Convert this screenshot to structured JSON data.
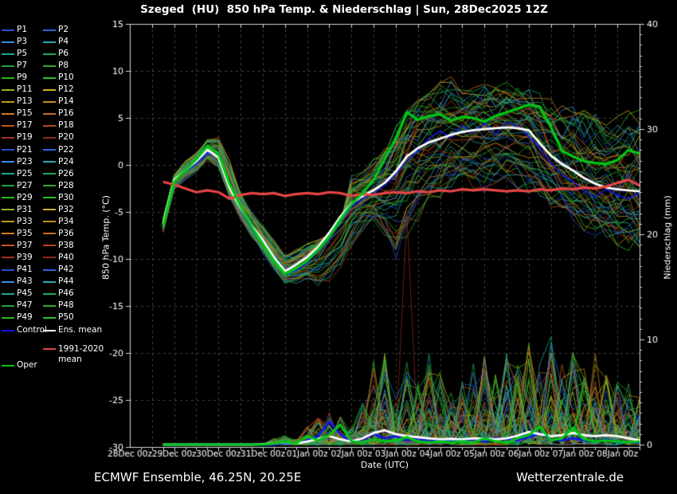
{
  "header": {
    "title": "Szeged  (HU)  850 hPa Temp. & Niederschlag | Sun, 28Dec2025 12Z"
  },
  "footer": {
    "left": "ECMWF Ensemble, 46.25N, 20.25E",
    "right": "Wetterzentrale.de"
  },
  "legend": {
    "members": [
      "P1",
      "P2",
      "P3",
      "P4",
      "P5",
      "P6",
      "P7",
      "P8",
      "P9",
      "P10",
      "P11",
      "P12",
      "P13",
      "P14",
      "P15",
      "P16",
      "P17",
      "P18",
      "P19",
      "P20",
      "P21",
      "P22",
      "P23",
      "P24",
      "P25",
      "P26",
      "P27",
      "P28",
      "P29",
      "P30",
      "P31",
      "P32",
      "P33",
      "P34",
      "P35",
      "P36",
      "P37",
      "P38",
      "P39",
      "P40",
      "P41",
      "P42",
      "P43",
      "P44",
      "P45",
      "P46",
      "P47",
      "P48",
      "P49",
      "P50"
    ],
    "palette20": [
      "#2050c8",
      "#2866d8",
      "#3c8ce0",
      "#28aab4",
      "#1ea88c",
      "#1ea85e",
      "#28a03c",
      "#30aa28",
      "#2eb81e",
      "#28c028",
      "#96b41e",
      "#c8b81e",
      "#b89a14",
      "#c88c1c",
      "#d27e1e",
      "#c86e1c",
      "#be5a1a",
      "#b44a1e",
      "#a03220",
      "#8c2a1c"
    ],
    "extras": [
      {
        "id": "control",
        "label": "Control",
        "color": "#1414e6"
      },
      {
        "id": "ens-mean",
        "label": "Ens. mean",
        "color": "#ffffff"
      },
      {
        "id": "climate-mean",
        "label": "1991-2020 mean",
        "color": "#e64545"
      },
      {
        "id": "oper",
        "label": "Oper",
        "color": "#00c814"
      }
    ]
  },
  "chart_data": {
    "type": "line",
    "title": "Szeged  (HU)  850 hPa Temp. & Niederschlag | Sun, 28Dec2025 12Z",
    "x_axis": {
      "label": "Date (UTC)",
      "span_days": 11.5,
      "grid_hours": 12,
      "minor_tick_hours": 6,
      "tick_labels": [
        "28Dec 00z",
        "29Dec 00z",
        "30Dec 00z",
        "31Dec 00z",
        "01Jan 00z",
        "02Jan 00z",
        "03Jan 00z",
        "04Jan 00z",
        "05Jan 00z",
        "06Jan 00z",
        "07Jan 00z",
        "08Jan 00z"
      ]
    },
    "y_left": {
      "label": "850 hPa Temp. (°C)",
      "min": -30,
      "max": 15,
      "ticks": [
        15,
        10,
        5,
        0,
        -5,
        -10,
        -15,
        -20,
        -25,
        -30
      ]
    },
    "y_right": {
      "label": "Niederschlag (mm)",
      "min": 0,
      "max": 40,
      "ticks": [
        40,
        30,
        20,
        10,
        0
      ]
    },
    "colors": {
      "background": "#000000",
      "frame": "#d8d8d8",
      "grid": "#45453e",
      "text": "#ffffff"
    },
    "t_days": [
      0.75,
      1,
      1.25,
      1.5,
      1.75,
      2,
      2.25,
      2.5,
      2.75,
      3,
      3.25,
      3.5,
      3.75,
      4,
      4.25,
      4.5,
      4.75,
      5,
      5.25,
      5.5,
      5.75,
      6,
      6.25,
      6.5,
      6.75,
      7,
      7.25,
      7.5,
      7.75,
      8,
      8.25,
      8.5,
      8.75,
      9,
      9.25,
      9.5,
      9.75,
      10,
      10.25,
      10.5,
      10.75,
      11,
      11.25,
      11.5
    ],
    "series": {
      "ens_mean_temp": {
        "name": "Ens. mean",
        "color": "#ffffff",
        "width": 2.8,
        "axis": "temp",
        "values": [
          -6.3,
          -1.6,
          -0.6,
          0.4,
          1.6,
          0.8,
          -2.4,
          -4.6,
          -6.5,
          -8.0,
          -9.8,
          -11.3,
          -10.6,
          -9.8,
          -8.7,
          -7.2,
          -5.5,
          -4.1,
          -3.3,
          -2.7,
          -1.9,
          -0.7,
          0.9,
          1.8,
          2.4,
          2.8,
          3.2,
          3.5,
          3.7,
          3.8,
          3.9,
          4.0,
          3.9,
          3.7,
          2.3,
          1.0,
          0.1,
          -0.6,
          -1.4,
          -2.0,
          -2.4,
          -2.6,
          -2.7,
          -2.8
        ]
      },
      "oper_temp": {
        "name": "Oper",
        "color": "#00c814",
        "width": 3.2,
        "axis": "temp",
        "values": [
          -6.6,
          -1.8,
          -0.6,
          0.6,
          2.0,
          1.2,
          -2.0,
          -4.4,
          -6.6,
          -8.4,
          -10.2,
          -11.6,
          -11.0,
          -10.2,
          -9.0,
          -7.6,
          -5.8,
          -4.2,
          -3.0,
          -1.6,
          0.6,
          2.8,
          5.6,
          4.8,
          5.2,
          5.4,
          4.7,
          5.1,
          5.0,
          4.6,
          5.2,
          5.6,
          6.0,
          6.4,
          6.2,
          4.0,
          1.5,
          0.9,
          0.4,
          0.2,
          0.1,
          0.5,
          1.6,
          1.2
        ]
      },
      "control_temp": {
        "name": "Control",
        "color": "#1414e6",
        "width": 1.6,
        "axis": "temp",
        "values": [
          -6.4,
          -1.7,
          -0.7,
          0.1,
          1.3,
          1.0,
          -2.2,
          -4.8,
          -6.8,
          -8.3,
          -10.1,
          -11.6,
          -11.2,
          -10.4,
          -9.2,
          -7.8,
          -6.0,
          -4.4,
          -3.6,
          -3.0,
          -2.2,
          -1.0,
          0.4,
          1.5,
          2.8,
          3.6,
          2.9,
          4.2,
          3.4,
          4.4,
          3.2,
          4.6,
          4.1,
          3.0,
          1.8,
          0.2,
          -1.0,
          -1.8,
          -2.8,
          -3.4,
          -2.6,
          -3.2,
          -3.6,
          -3.0
        ]
      },
      "climate_mean_temp": {
        "name": "1991-2020 mean",
        "color": "#e64545",
        "width": 3.2,
        "axis": "temp",
        "values": [
          -1.8,
          -2.1,
          -2.5,
          -2.9,
          -2.7,
          -2.9,
          -3.6,
          -3.2,
          -3.0,
          -3.1,
          -3.0,
          -3.3,
          -3.1,
          -3.0,
          -3.1,
          -2.9,
          -3.0,
          -3.3,
          -3.1,
          -3.2,
          -3.0,
          -2.9,
          -3.0,
          -2.8,
          -2.9,
          -2.7,
          -2.8,
          -2.6,
          -2.7,
          -2.6,
          -2.7,
          -2.8,
          -2.7,
          -2.8,
          -2.6,
          -2.7,
          -2.5,
          -2.6,
          -2.4,
          -2.5,
          -2.3,
          -1.9,
          -1.6,
          -2.2
        ]
      },
      "ens_mean_precip": {
        "name": "Ens. mean",
        "color": "#ffffff",
        "width": 2.8,
        "axis": "precip",
        "values": [
          0,
          0,
          0,
          0,
          0,
          0,
          0,
          0,
          0,
          0.05,
          0.1,
          0.25,
          0.1,
          0.3,
          0.55,
          0.8,
          0.5,
          0.3,
          0.6,
          1.1,
          1.35,
          1.0,
          0.8,
          0.7,
          0.6,
          0.5,
          0.55,
          0.5,
          0.6,
          0.55,
          0.5,
          0.6,
          0.85,
          1.2,
          1.0,
          0.8,
          0.9,
          1.1,
          0.9,
          0.8,
          0.9,
          0.8,
          0.6,
          0.4
        ]
      },
      "oper_precip": {
        "name": "Oper",
        "color": "#00c814",
        "width": 3.0,
        "axis": "precip",
        "values": [
          0,
          0,
          0,
          0,
          0,
          0,
          0,
          0,
          0,
          0,
          0.1,
          0.3,
          0.1,
          0.8,
          0.4,
          0.9,
          1.9,
          0.3,
          0.2,
          0.5,
          0.3,
          0.4,
          0.7,
          0.3,
          0.2,
          0.3,
          0.2,
          0.3,
          0.2,
          0.6,
          0.3,
          0.2,
          0.6,
          0.9,
          1.7,
          0.4,
          0.6,
          1.6,
          0.5,
          0.3,
          0.4,
          0.3,
          0.2,
          0.3
        ]
      },
      "control_precip": {
        "name": "Control",
        "color": "#1414e6",
        "width": 2.8,
        "axis": "precip",
        "values": [
          0,
          0,
          0,
          0,
          0,
          0,
          0,
          0,
          0,
          0,
          0,
          0.2,
          0.1,
          0.4,
          0.8,
          2.2,
          1.0,
          0.2,
          0.5,
          1.0,
          0.6,
          0.8,
          0.4,
          0.6,
          0.3,
          0.5,
          0.3,
          0.4,
          0.5,
          0.3,
          0.6,
          0.5,
          0.4,
          0.7,
          1.1,
          0.5,
          0.4,
          0.6,
          0.4,
          0.3,
          0.5,
          0.3,
          0.2,
          0.2
        ]
      }
    },
    "ensemble": {
      "member_count": 50,
      "temp_env_min": [
        -7.2,
        -2.6,
        -1.6,
        -0.8,
        0.4,
        -0.2,
        -3.4,
        -5.8,
        -7.8,
        -9.4,
        -11.2,
        -12.6,
        -12.6,
        -12.4,
        -13.4,
        -12.8,
        -11.6,
        -8.8,
        -7.0,
        -6.0,
        -7.5,
        -10.0,
        -8.0,
        -6.0,
        -4.5,
        -3.5,
        -2.5,
        -2.0,
        -2.5,
        -3.0,
        -2.5,
        -2.0,
        -2.5,
        -3.0,
        -3.5,
        -4.5,
        -5.5,
        -6.5,
        -7.0,
        -7.6,
        -8.2,
        -8.8,
        -9.2,
        -9.6
      ],
      "temp_env_max": [
        -5.7,
        -0.9,
        0.4,
        1.4,
        2.8,
        3.0,
        0.6,
        -3.0,
        -5.0,
        -6.4,
        -8.0,
        -9.4,
        -9.0,
        -8.4,
        -8.0,
        -7.4,
        -6.2,
        -1.2,
        -0.8,
        0.6,
        1.8,
        4.0,
        5.8,
        7.0,
        7.6,
        8.8,
        9.4,
        8.6,
        8.2,
        8.6,
        8.2,
        8.8,
        8.4,
        8.0,
        7.6,
        7.0,
        6.6,
        6.2,
        5.8,
        5.6,
        5.2,
        5.4,
        5.8,
        6.0
      ],
      "precip_env_max": [
        0.05,
        0.05,
        0.05,
        0.05,
        0.05,
        0.05,
        0.05,
        0.05,
        0.05,
        0.05,
        0.6,
        1.0,
        0.5,
        1.8,
        2.6,
        3.2,
        2.6,
        1.6,
        4.0,
        8.3,
        9.2,
        6.5,
        8.0,
        6.5,
        9.3,
        7.0,
        6.0,
        6.3,
        7.8,
        8.4,
        6.8,
        8.8,
        7.8,
        9.4,
        7.8,
        10.4,
        8.0,
        8.8,
        7.0,
        9.0,
        7.8,
        6.2,
        7.2,
        5.0
      ],
      "outlier_precip_spike": {
        "member": "P40",
        "t_day": 6.25,
        "peak_mm": 21.8,
        "color": "#8c2a1c"
      }
    }
  }
}
